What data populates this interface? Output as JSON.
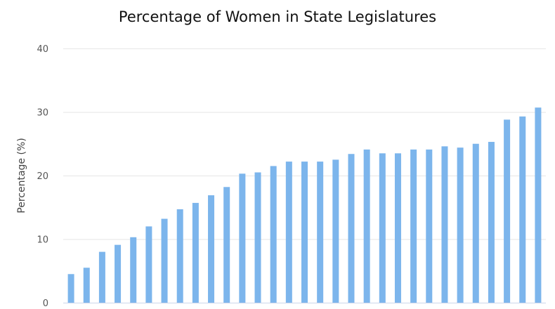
{
  "chart_data": {
    "type": "bar",
    "title": "Percentage of Women in State Legislatures",
    "xlabel": "",
    "ylabel": "Percentage (%)",
    "ylim": [
      0,
      40
    ],
    "yticks": [
      "0",
      "10",
      "20",
      "30",
      "40"
    ],
    "grid": true,
    "bar_color": "#7cb5ec",
    "values": [
      4.5,
      5.5,
      8.0,
      9.1,
      10.3,
      12.0,
      13.2,
      14.7,
      15.7,
      16.9,
      18.2,
      20.3,
      20.5,
      21.5,
      22.2,
      22.2,
      22.2,
      22.5,
      23.4,
      24.1,
      23.5,
      23.5,
      24.1,
      24.1,
      24.6,
      24.4,
      25.0,
      25.3,
      28.8,
      29.3,
      30.7
    ]
  }
}
